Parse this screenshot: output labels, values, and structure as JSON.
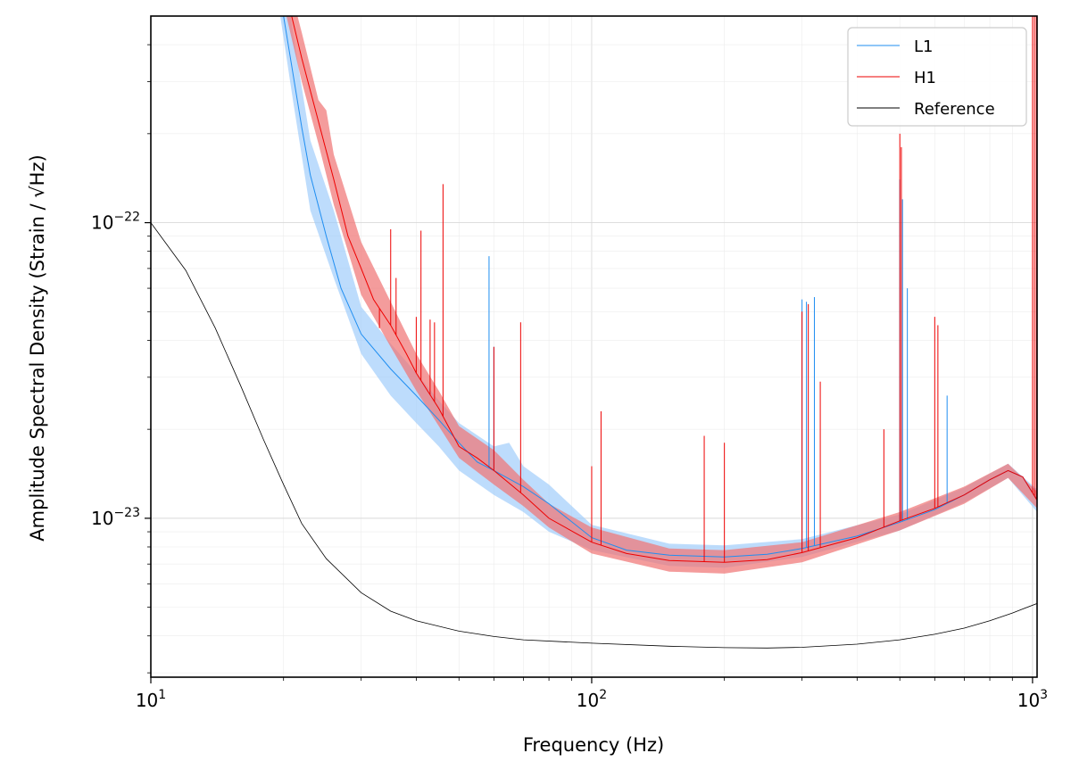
{
  "chart_data": {
    "type": "line",
    "title": "",
    "xlabel": "Frequency (Hz)",
    "ylabel": "Amplitude Spectral Density (Strain / √Hz)",
    "xscale": "log",
    "yscale": "log",
    "xlim": [
      10,
      1024
    ],
    "ylim": [
      2.9e-24,
      5e-22
    ],
    "grid": "on (major and minor)",
    "legend_position": "top-right",
    "x_ticks": [
      {
        "value": 10,
        "base": "10",
        "exp": "1"
      },
      {
        "value": 100,
        "base": "10",
        "exp": "2"
      },
      {
        "value": 1000,
        "base": "10",
        "exp": "3"
      }
    ],
    "y_ticks": [
      {
        "value": 1e-22,
        "base": "10",
        "exp": "−22"
      },
      {
        "value": 1e-23,
        "base": "10",
        "exp": "−23"
      }
    ],
    "series": [
      {
        "name": "L1",
        "color": "#1f8ef1",
        "band_color": "#99c9fb",
        "line": [
          [
            18,
            1e-21
          ],
          [
            20,
            5e-22
          ],
          [
            21,
            3.2e-22
          ],
          [
            22,
            2.1e-22
          ],
          [
            23,
            1.45e-22
          ],
          [
            25,
            9e-23
          ],
          [
            27,
            6e-23
          ],
          [
            30,
            4.2e-23
          ],
          [
            35,
            3.2e-23
          ],
          [
            40,
            2.6e-23
          ],
          [
            45,
            2.15e-23
          ],
          [
            50,
            1.8e-23
          ],
          [
            55,
            1.55e-23
          ],
          [
            60,
            1.45e-23
          ],
          [
            70,
            1.28e-23
          ],
          [
            80,
            1.12e-23
          ],
          [
            100,
            8.6e-24
          ],
          [
            120,
            7.8e-24
          ],
          [
            150,
            7.5e-24
          ],
          [
            200,
            7.4e-24
          ],
          [
            250,
            7.55e-24
          ],
          [
            300,
            7.9e-24
          ],
          [
            400,
            8.7e-24
          ],
          [
            500,
            9.7e-24
          ],
          [
            600,
            1.07e-23
          ],
          [
            700,
            1.2e-23
          ],
          [
            800,
            1.35e-23
          ],
          [
            880,
            1.45e-23
          ],
          [
            950,
            1.38e-23
          ],
          [
            1024,
            1.15e-23
          ]
        ],
        "band_lower": [
          [
            19,
            7e-22
          ],
          [
            21,
            2.6e-22
          ],
          [
            23,
            1.1e-22
          ],
          [
            26,
            6.5e-23
          ],
          [
            30,
            3.6e-23
          ],
          [
            35,
            2.6e-23
          ],
          [
            40,
            2.1e-23
          ],
          [
            45,
            1.75e-23
          ],
          [
            50,
            1.45e-23
          ],
          [
            60,
            1.2e-23
          ],
          [
            70,
            1.05e-23
          ],
          [
            80,
            9e-24
          ],
          [
            100,
            7.8e-24
          ],
          [
            150,
            6.9e-24
          ],
          [
            200,
            6.8e-24
          ],
          [
            300,
            7.4e-24
          ],
          [
            500,
            9.1e-24
          ],
          [
            700,
            1.13e-23
          ],
          [
            880,
            1.37e-23
          ],
          [
            1024,
            1.05e-23
          ]
        ],
        "band_upper": [
          [
            19,
            1.3e-21
          ],
          [
            21,
            4.4e-22
          ],
          [
            23,
            1.9e-22
          ],
          [
            26,
            1.1e-22
          ],
          [
            30,
            5.2e-23
          ],
          [
            35,
            3.9e-23
          ],
          [
            40,
            3.1e-23
          ],
          [
            45,
            2.5e-23
          ],
          [
            50,
            2.1e-23
          ],
          [
            60,
            1.75e-23
          ],
          [
            65,
            1.8e-23
          ],
          [
            70,
            1.5e-23
          ],
          [
            80,
            1.3e-23
          ],
          [
            100,
            9.5e-24
          ],
          [
            150,
            8.2e-24
          ],
          [
            200,
            8.1e-24
          ],
          [
            300,
            8.5e-24
          ],
          [
            500,
            1.03e-23
          ],
          [
            700,
            1.27e-23
          ],
          [
            880,
            1.53e-23
          ],
          [
            1024,
            1.25e-23
          ]
        ],
        "spikes": [
          [
            58.5,
            7.7e-23
          ],
          [
            60,
            3.8e-23
          ],
          [
            300,
            5.5e-23
          ],
          [
            307,
            5.4e-23
          ],
          [
            320,
            5.6e-23
          ],
          [
            500,
            1.4e-22
          ],
          [
            507,
            1.2e-22
          ],
          [
            520,
            6e-23
          ],
          [
            640,
            2.6e-23
          ]
        ]
      },
      {
        "name": "H1",
        "color": "#ee0000",
        "band_color": "#f07676",
        "line": [
          [
            18,
            1.2e-21
          ],
          [
            20,
            6.5e-22
          ],
          [
            22,
            3.6e-22
          ],
          [
            24,
            2.2e-22
          ],
          [
            26,
            1.4e-22
          ],
          [
            28,
            9e-23
          ],
          [
            30,
            7e-23
          ],
          [
            32,
            5.5e-23
          ],
          [
            35,
            4.5e-23
          ],
          [
            38,
            3.6e-23
          ],
          [
            40,
            3.1e-23
          ],
          [
            45,
            2.35e-23
          ],
          [
            50,
            1.75e-23
          ],
          [
            55,
            1.6e-23
          ],
          [
            60,
            1.45e-23
          ],
          [
            70,
            1.2e-23
          ],
          [
            80,
            1e-23
          ],
          [
            100,
            8.3e-24
          ],
          [
            120,
            7.6e-24
          ],
          [
            150,
            7.2e-24
          ],
          [
            200,
            7.1e-24
          ],
          [
            250,
            7.25e-24
          ],
          [
            300,
            7.65e-24
          ],
          [
            400,
            8.6e-24
          ],
          [
            500,
            9.8e-24
          ],
          [
            600,
            1.08e-23
          ],
          [
            700,
            1.2e-23
          ],
          [
            800,
            1.35e-23
          ],
          [
            880,
            1.45e-23
          ],
          [
            950,
            1.38e-23
          ],
          [
            1024,
            1.15e-23
          ]
        ],
        "band_lower": [
          [
            18,
            1e-21
          ],
          [
            20,
            5.5e-22
          ],
          [
            22,
            3e-22
          ],
          [
            24,
            1.85e-22
          ],
          [
            26,
            1.15e-22
          ],
          [
            30,
            5.7e-23
          ],
          [
            35,
            3.8e-23
          ],
          [
            40,
            2.7e-23
          ],
          [
            45,
            2.05e-23
          ],
          [
            50,
            1.6e-23
          ],
          [
            60,
            1.3e-23
          ],
          [
            70,
            1.1e-23
          ],
          [
            80,
            9.3e-24
          ],
          [
            100,
            7.6e-24
          ],
          [
            150,
            6.6e-24
          ],
          [
            200,
            6.5e-24
          ],
          [
            300,
            7.1e-24
          ],
          [
            500,
            9.1e-24
          ],
          [
            700,
            1.12e-23
          ],
          [
            880,
            1.37e-23
          ],
          [
            1024,
            1.08e-23
          ]
        ],
        "band_upper": [
          [
            18,
            1.4e-21
          ],
          [
            20,
            7.6e-22
          ],
          [
            22,
            4.4e-22
          ],
          [
            24,
            2.6e-22
          ],
          [
            25,
            2.4e-22
          ],
          [
            26,
            1.7e-22
          ],
          [
            30,
            8.6e-23
          ],
          [
            35,
            5.4e-23
          ],
          [
            40,
            3.6e-23
          ],
          [
            45,
            2.7e-23
          ],
          [
            50,
            2.05e-23
          ],
          [
            60,
            1.7e-23
          ],
          [
            70,
            1.35e-23
          ],
          [
            80,
            1.12e-23
          ],
          [
            100,
            9.3e-24
          ],
          [
            150,
            7.9e-24
          ],
          [
            200,
            7.8e-24
          ],
          [
            300,
            8.3e-24
          ],
          [
            500,
            1.05e-23
          ],
          [
            700,
            1.28e-23
          ],
          [
            880,
            1.53e-23
          ],
          [
            1024,
            1.23e-23
          ]
        ],
        "spikes": [
          [
            33,
            4.4e-23
          ],
          [
            35,
            9.5e-23
          ],
          [
            36,
            6.5e-23
          ],
          [
            40,
            4.8e-23
          ],
          [
            41,
            9.4e-23
          ],
          [
            43,
            4.7e-23
          ],
          [
            44,
            4.6e-23
          ],
          [
            46,
            1.35e-22
          ],
          [
            60,
            3.8e-23
          ],
          [
            69,
            4.6e-23
          ],
          [
            100,
            1.5e-23
          ],
          [
            105,
            2.3e-23
          ],
          [
            180,
            1.9e-23
          ],
          [
            200,
            1.8e-23
          ],
          [
            300,
            5e-23
          ],
          [
            310,
            5.3e-23
          ],
          [
            330,
            2.9e-23
          ],
          [
            460,
            2e-23
          ],
          [
            500,
            2e-22
          ],
          [
            504,
            1.8e-22
          ],
          [
            600,
            4.8e-23
          ],
          [
            610,
            4.5e-23
          ],
          [
            1000,
            5e-22
          ],
          [
            1010,
            5e-22
          ],
          [
            1020,
            5e-22
          ]
        ]
      },
      {
        "name": "Reference",
        "color": "#000000",
        "line": [
          [
            10,
            1e-22
          ],
          [
            12,
            6.9e-23
          ],
          [
            14,
            4.4e-23
          ],
          [
            16,
            2.8e-23
          ],
          [
            18,
            1.85e-23
          ],
          [
            20,
            1.3e-23
          ],
          [
            22,
            9.6e-24
          ],
          [
            25,
            7.3e-24
          ],
          [
            30,
            5.6e-24
          ],
          [
            35,
            4.85e-24
          ],
          [
            40,
            4.5e-24
          ],
          [
            50,
            4.15e-24
          ],
          [
            60,
            3.98e-24
          ],
          [
            70,
            3.88e-24
          ],
          [
            100,
            3.78e-24
          ],
          [
            150,
            3.69e-24
          ],
          [
            200,
            3.65e-24
          ],
          [
            250,
            3.64e-24
          ],
          [
            300,
            3.66e-24
          ],
          [
            400,
            3.75e-24
          ],
          [
            500,
            3.88e-24
          ],
          [
            600,
            4.05e-24
          ],
          [
            700,
            4.25e-24
          ],
          [
            800,
            4.5e-24
          ],
          [
            900,
            4.78e-24
          ],
          [
            1024,
            5.15e-24
          ]
        ]
      }
    ]
  }
}
